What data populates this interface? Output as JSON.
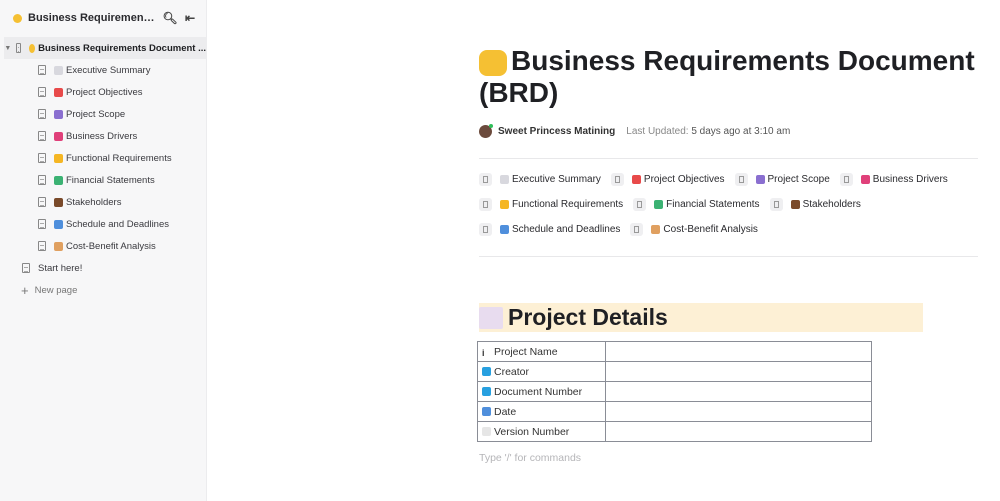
{
  "sidebar": {
    "header_title": "Business Requirements Docum...",
    "root": {
      "label": "Business Requirements Document ...",
      "icon": "handshake-emoji"
    },
    "children": [
      {
        "label": "Executive Summary",
        "icon": "page-emoji",
        "color": "#d8d8de"
      },
      {
        "label": "Project Objectives",
        "icon": "target-emoji",
        "color": "#e84a4a"
      },
      {
        "label": "Project Scope",
        "icon": "toolbox-emoji",
        "color": "#8a6fd0"
      },
      {
        "label": "Business Drivers",
        "icon": "bar-chart-emoji",
        "color": "#e0407a"
      },
      {
        "label": "Functional Requirements",
        "icon": "folder-emoji",
        "color": "#f5b623"
      },
      {
        "label": "Financial Statements",
        "icon": "money-emoji",
        "color": "#3bb273"
      },
      {
        "label": "Stakeholders",
        "icon": "briefcase-emoji",
        "color": "#7a4a2a"
      },
      {
        "label": "Schedule and Deadlines",
        "icon": "calendar-emoji",
        "color": "#4f8fdc"
      },
      {
        "label": "Cost-Benefit Analysis",
        "icon": "money-bag-emoji",
        "color": "#e0a060"
      }
    ],
    "start_here": "Start here!",
    "new_page": "New page"
  },
  "doc": {
    "title": "Business Requirements Document (BRD)",
    "title_icon": "handshake-emoji",
    "author": "Sweet Princess Matining",
    "last_updated_label": "Last Updated:",
    "last_updated_value": "5 days ago at 3:10 am",
    "section_heading": "Project Details",
    "section_icon": "chart-increasing-emoji",
    "table": [
      {
        "label": "Project Name",
        "icon": "info-icon",
        "value": ""
      },
      {
        "label": "Creator",
        "icon": "control-knobs-emoji",
        "value": ""
      },
      {
        "label": "Document Number",
        "icon": "numbers-emoji",
        "value": ""
      },
      {
        "label": "Date",
        "icon": "calendar-emoji",
        "value": ""
      },
      {
        "label": "Version Number",
        "icon": "one-emoji",
        "value": ""
      }
    ],
    "placeholder": "Type '/' for commands"
  }
}
